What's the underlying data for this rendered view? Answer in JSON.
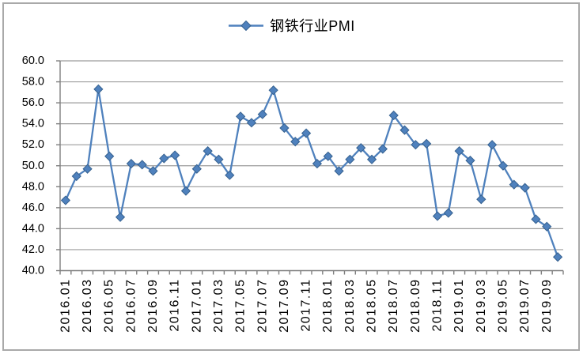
{
  "legend": {
    "label": "钢铁行业PMI"
  },
  "colors": {
    "series": "#4f81bd",
    "marker_border": "#36618f",
    "gridline": "#9c9c9c",
    "axis": "#7f7f7f",
    "text": "#000000",
    "chart_border": "#a9a9a9",
    "background": "#ffffff"
  },
  "chart_data": {
    "type": "line",
    "title": "",
    "series": [
      {
        "name": "钢铁行业PMI",
        "values": [
          46.7,
          49.0,
          49.7,
          57.3,
          50.9,
          45.1,
          50.2,
          50.1,
          49.5,
          50.7,
          51.0,
          47.6,
          49.7,
          51.4,
          50.6,
          49.1,
          54.7,
          54.1,
          54.9,
          57.2,
          53.6,
          52.3,
          53.1,
          50.2,
          50.9,
          49.5,
          50.6,
          51.7,
          50.6,
          51.6,
          54.8,
          53.4,
          52.0,
          52.1,
          45.2,
          45.5,
          51.4,
          50.5,
          46.8,
          52.0,
          50.0,
          48.2,
          47.9,
          44.9,
          44.2,
          41.3
        ]
      }
    ],
    "categories": [
      "2016.01",
      "2016.02",
      "2016.03",
      "2016.04",
      "2016.05",
      "2016.06",
      "2016.07",
      "2016.08",
      "2016.09",
      "2016.10",
      "2016.11",
      "2016.12",
      "2017.01",
      "2017.02",
      "2017.03",
      "2017.04",
      "2017.05",
      "2017.06",
      "2017.07",
      "2017.08",
      "2017.09",
      "2017.10",
      "2017.11",
      "2017.12",
      "2018.01",
      "2018.02",
      "2018.03",
      "2018.04",
      "2018.05",
      "2018.06",
      "2018.07",
      "2018.08",
      "2018.09",
      "2018.10",
      "2018.11",
      "2018.12",
      "2019.01",
      "2019.02",
      "2019.03",
      "2019.04",
      "2019.05",
      "2019.06",
      "2019.07",
      "2019.08",
      "2019.09",
      "2019.10"
    ],
    "x_tick_labels": [
      "2016.01",
      "2016.03",
      "2016.05",
      "2016.07",
      "2016.09",
      "2016.11",
      "2017.01",
      "2017.03",
      "2017.05",
      "2017.07",
      "2017.09",
      "2017.11",
      "2018.01",
      "2018.03",
      "2018.05",
      "2018.07",
      "2018.09",
      "2018.11",
      "2019.01",
      "2019.03",
      "2019.05",
      "2019.07",
      "2019.09"
    ],
    "y_tick_labels": [
      "40.0",
      "42.0",
      "44.0",
      "46.0",
      "48.0",
      "50.0",
      "52.0",
      "54.0",
      "56.0",
      "58.0",
      "60.0"
    ],
    "ylim": [
      40,
      60
    ],
    "ytick_step": 2,
    "grid": true,
    "marker": "diamond",
    "legend_position": "top-center"
  }
}
